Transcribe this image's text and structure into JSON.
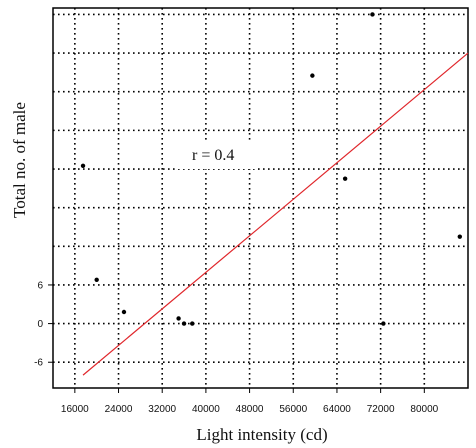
{
  "chart_data": {
    "type": "scatter",
    "title": "",
    "xlabel": "Light intensity (cd)",
    "ylabel": "Total no. of male",
    "x_ticks": [
      16000,
      24000,
      32000,
      40000,
      48000,
      56000,
      64000,
      72000,
      80000
    ],
    "x_tick_labels": [
      "16000",
      "24000",
      "32000",
      "40000",
      "48000",
      "56000",
      "64000",
      "72000",
      "80000"
    ],
    "y_ticks": [
      6,
      0,
      -6
    ],
    "y_tick_labels": [
      "6",
      "0",
      "-6"
    ],
    "xlim": [
      12000,
      88000
    ],
    "ylim": [
      -10,
      49
    ],
    "grid": true,
    "grid_style": "dotted",
    "points": [
      {
        "x": 17500,
        "y": 24.5
      },
      {
        "x": 20000,
        "y": 6.8
      },
      {
        "x": 25000,
        "y": 1.8
      },
      {
        "x": 35000,
        "y": 0.8
      },
      {
        "x": 36000,
        "y": 0
      },
      {
        "x": 37500,
        "y": 0
      },
      {
        "x": 59500,
        "y": 38.5
      },
      {
        "x": 65500,
        "y": 22.5
      },
      {
        "x": 70500,
        "y": 48
      },
      {
        "x": 72500,
        "y": 0
      },
      {
        "x": 86500,
        "y": 13.5
      }
    ],
    "trendline": {
      "x": [
        17500,
        88000
      ],
      "y": [
        -8,
        42
      ],
      "color": "#e0262b"
    },
    "annotation": "r = 0.4"
  }
}
